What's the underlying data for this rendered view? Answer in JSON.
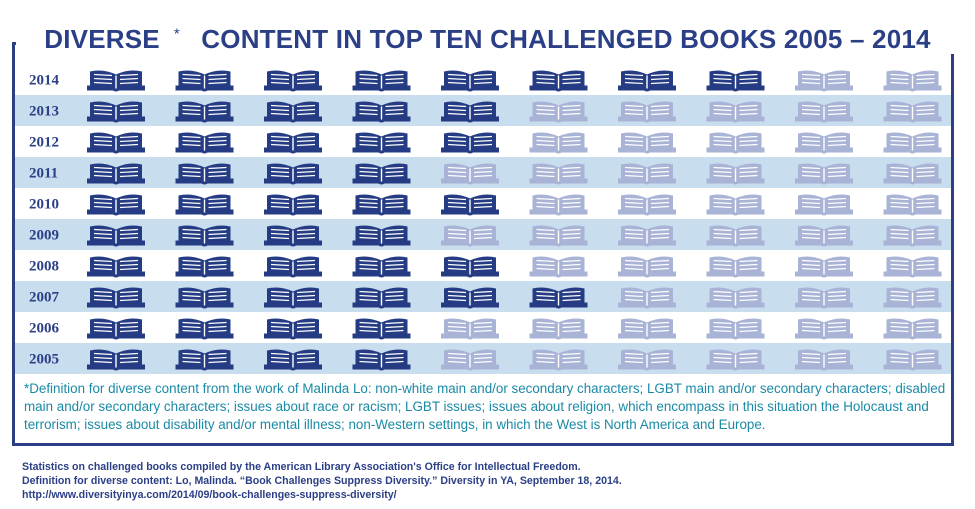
{
  "title": {
    "main": "DIVERSE",
    "asterisk": "*",
    "rest": " CONTENT IN TOP TEN CHALLENGED BOOKS 2005 – 2014"
  },
  "colors": {
    "frame": "#2b3f86",
    "diverse": "#253c85",
    "not_diverse": "#a8b3d6",
    "band": "#c8dded",
    "definition_text": "#1a8aa6"
  },
  "chart_data": {
    "type": "pictogram",
    "title": "DIVERSE* CONTENT IN TOP TEN CHALLENGED BOOKS 2005 – 2014",
    "rows": [
      {
        "year": "2014",
        "diverse": 8,
        "total": 10
      },
      {
        "year": "2013",
        "diverse": 5,
        "total": 10
      },
      {
        "year": "2012",
        "diverse": 5,
        "total": 10
      },
      {
        "year": "2011",
        "diverse": 4,
        "total": 10
      },
      {
        "year": "2010",
        "diverse": 5,
        "total": 10
      },
      {
        "year": "2009",
        "diverse": 4,
        "total": 10
      },
      {
        "year": "2008",
        "diverse": 5,
        "total": 10
      },
      {
        "year": "2007",
        "diverse": 6,
        "total": 10
      },
      {
        "year": "2006",
        "diverse": 4,
        "total": 10
      },
      {
        "year": "2005",
        "diverse": 4,
        "total": 10
      }
    ]
  },
  "definition": "*Definition for diverse content from the work of Malinda Lo: non-white main and/or secondary characters; LGBT main and/or secondary characters; disabled main and/or secondary characters; issues about race or racism; LGBT issues; issues about religion, which encompass in this situation the Holocaust and terrorism; issues about disability and/or mental illness; non-Western settings, in which the West is North America and Europe.",
  "sources": [
    "Statistics on challenged books compiled by the American Library Association's Office for Intellectual Freedom.",
    "Definition for diverse content: Lo, Malinda. “Book Challenges Suppress Diversity.” Diversity in YA, September 18, 2014.",
    "http://www.diversityinya.com/2014/09/book-challenges-suppress-diversity/"
  ]
}
